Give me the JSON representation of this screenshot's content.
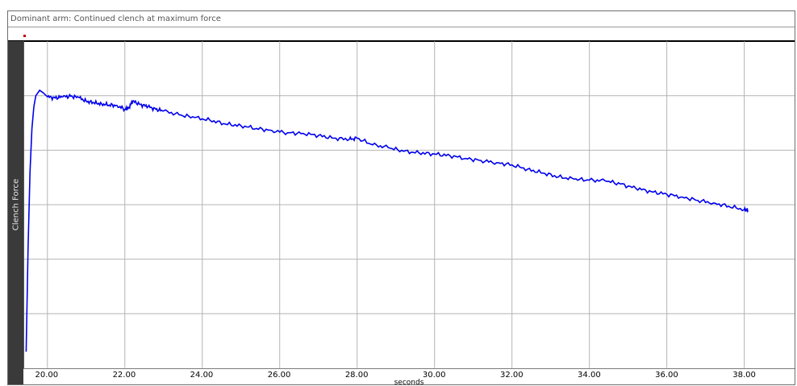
{
  "window": {
    "title": "Dominant arm: Continued clench at maximum force"
  },
  "colors": {
    "series": "#0000ee",
    "grid": "#b4b4b4",
    "panel": "#3a3a3a"
  },
  "chart_data": {
    "type": "line",
    "title": "",
    "xlabel": "seconds",
    "ylabel": "Clench Force",
    "xlim": [
      19.4,
      39.3
    ],
    "ylim": [
      0,
      6
    ],
    "x_ticks": [
      "20.00",
      "22.00",
      "24.00",
      "26.00",
      "28.00",
      "30.00",
      "32.00",
      "34.00",
      "36.00",
      "38.00"
    ],
    "x_tick_values": [
      20,
      22,
      24,
      26,
      28,
      30,
      32,
      34,
      36,
      38
    ],
    "y_grid_values": [
      1,
      2,
      3,
      4,
      5
    ],
    "y_tick_labels_visible": false,
    "grid": true,
    "legend": "none",
    "series": [
      {
        "x": [
          19.45,
          19.5,
          19.55,
          19.6,
          19.65,
          19.7,
          19.8,
          19.9,
          20.0,
          20.2,
          20.4,
          20.6,
          20.8,
          21.0,
          21.2,
          21.4,
          21.6,
          21.8,
          22.0,
          22.1,
          22.2,
          22.4,
          22.6,
          22.8,
          23.0,
          23.4,
          23.8,
          24.2,
          24.6,
          25.0,
          25.4,
          25.8,
          26.2,
          26.6,
          27.0,
          27.4,
          27.8,
          28.0,
          28.4,
          28.8,
          29.2,
          29.6,
          30.0,
          30.4,
          30.8,
          31.2,
          31.6,
          32.0,
          32.4,
          32.8,
          33.2,
          33.6,
          34.0,
          34.4,
          34.8,
          35.2,
          35.6,
          36.0,
          36.4,
          36.8,
          37.2,
          37.6,
          38.0,
          38.1
        ],
        "y": [
          0.3,
          2.2,
          3.6,
          4.4,
          4.8,
          5.0,
          5.1,
          5.05,
          4.98,
          4.96,
          4.98,
          4.99,
          4.97,
          4.9,
          4.87,
          4.85,
          4.83,
          4.82,
          4.75,
          4.78,
          4.9,
          4.84,
          4.8,
          4.75,
          4.72,
          4.65,
          4.6,
          4.55,
          4.48,
          4.45,
          4.4,
          4.36,
          4.32,
          4.31,
          4.27,
          4.22,
          4.2,
          4.22,
          4.1,
          4.05,
          3.98,
          3.95,
          3.93,
          3.9,
          3.85,
          3.81,
          3.77,
          3.73,
          3.65,
          3.58,
          3.51,
          3.47,
          3.45,
          3.44,
          3.38,
          3.3,
          3.24,
          3.19,
          3.14,
          3.08,
          3.03,
          2.97,
          2.91,
          2.89
        ]
      }
    ]
  }
}
